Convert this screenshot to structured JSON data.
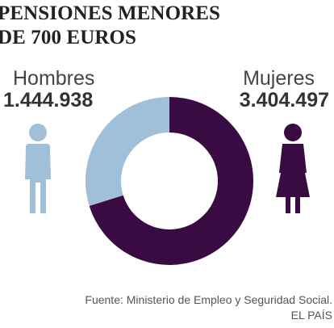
{
  "title": {
    "line1": "PENSIONES MENORES",
    "line2": "DE 700 EUROS"
  },
  "chart_data": {
    "type": "pie",
    "variant": "donut",
    "series": [
      {
        "name": "Hombres",
        "value": 1444938,
        "label": "1.444.938",
        "color": "#a0c0da",
        "icon": "man-icon"
      },
      {
        "name": "Mujeres",
        "value": 3404497,
        "label": "3.404.497",
        "color": "#3a0a43",
        "icon": "woman-icon"
      }
    ],
    "start_angle_deg": 0,
    "direction": "clockwise",
    "legend": "none"
  },
  "footer": {
    "source": "Fuente: Ministerio de Empleo y Seguridad Social.",
    "credit": "EL PAÍS"
  }
}
